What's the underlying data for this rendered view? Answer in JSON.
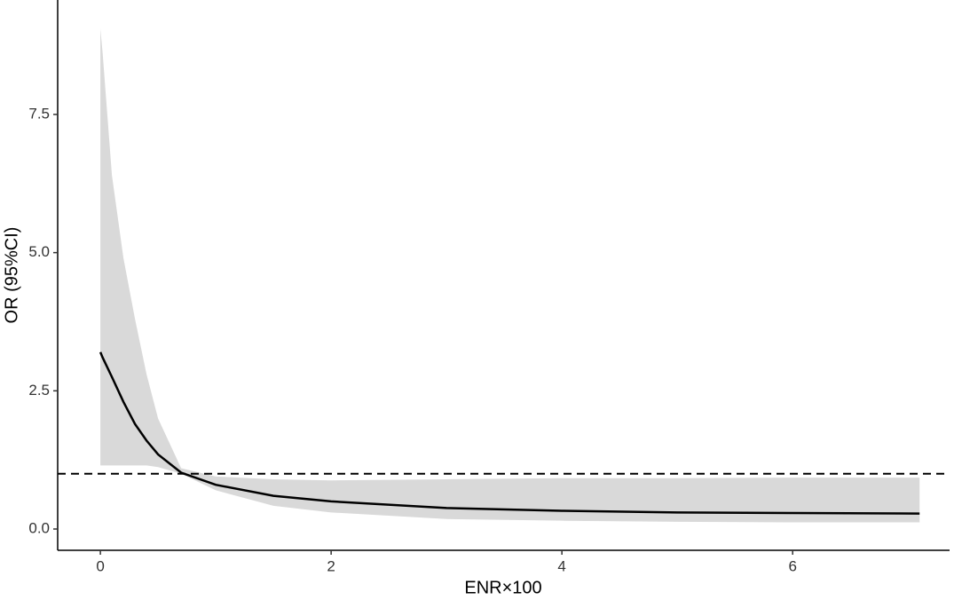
{
  "chart_data": {
    "type": "line",
    "x_label": "ENR×100",
    "y_label": "OR (95%CI)",
    "x": [
      0,
      0.02,
      0.1,
      0.2,
      0.3,
      0.4,
      0.5,
      0.7,
      1,
      1.5,
      2,
      3,
      4,
      5,
      6,
      7.1
    ],
    "values": [
      3.2,
      3.1,
      2.75,
      2.3,
      1.9,
      1.6,
      1.35,
      1.02,
      0.8,
      0.6,
      0.5,
      0.38,
      0.33,
      0.3,
      0.29,
      0.28
    ],
    "upper": [
      9.05,
      8.6,
      6.4,
      4.9,
      3.8,
      2.8,
      2.0,
      1.1,
      0.95,
      0.9,
      0.88,
      0.9,
      0.92,
      0.92,
      0.93,
      0.93
    ],
    "lower": [
      1.15,
      1.15,
      1.15,
      1.15,
      1.15,
      1.15,
      1.12,
      1.0,
      0.7,
      0.42,
      0.3,
      0.18,
      0.15,
      0.13,
      0.12,
      0.12
    ],
    "color": "#000000",
    "band_color": "#d9d9d9",
    "reference_line": 1,
    "xlim": [
      -0.37,
      7.36
    ],
    "xticks": [
      0,
      2,
      4,
      6
    ],
    "ylim": [
      -0.385,
      9.57
    ],
    "yticks": [
      {
        "value": 0,
        "label": "0.0"
      },
      {
        "value": 2.5,
        "label": "2.5"
      },
      {
        "value": 5,
        "label": "5.0"
      },
      {
        "value": 7.5,
        "label": "7.5"
      }
    ],
    "grid": false
  }
}
